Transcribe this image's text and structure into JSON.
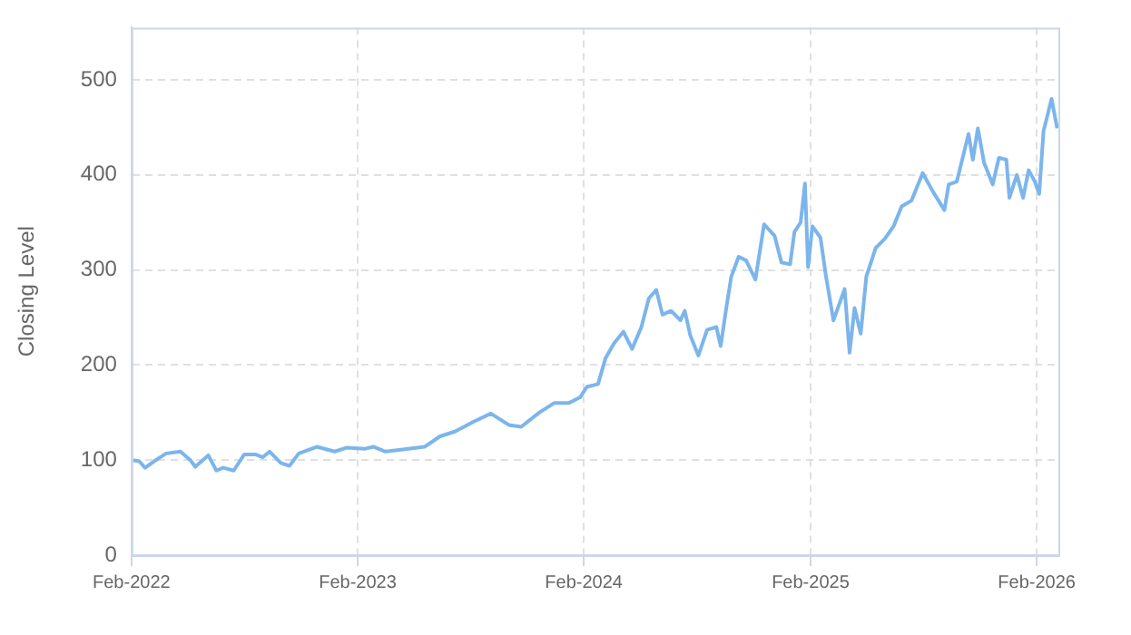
{
  "chart_data": {
    "type": "line",
    "ylabel": "Closing Level",
    "xlim": [
      "2022-02-01",
      "2026-03-08"
    ],
    "xticks": [
      {
        "value": "2022-02-01",
        "label": "Feb-2022"
      },
      {
        "value": "2023-02-01",
        "label": "Feb-2023"
      },
      {
        "value": "2024-02-01",
        "label": "Feb-2024"
      },
      {
        "value": "2025-02-01",
        "label": "Feb-2025"
      },
      {
        "value": "2026-02-01",
        "label": "Feb-2026"
      }
    ],
    "ylim": [
      0,
      555
    ],
    "yticks": [
      0,
      100,
      200,
      300,
      400,
      500
    ],
    "grid": true,
    "marker": "none",
    "line_style": "solid",
    "series": [
      {
        "color": "#7cb5ec",
        "x": [
          "2022-02-01",
          "2022-02-13",
          "2022-02-23",
          "2022-03-10",
          "2022-03-29",
          "2022-04-21",
          "2022-05-07",
          "2022-05-15",
          "2022-06-05",
          "2022-06-18",
          "2022-06-29",
          "2022-07-16",
          "2022-08-02",
          "2022-08-20",
          "2022-09-01",
          "2022-09-12",
          "2022-09-30",
          "2022-10-14",
          "2022-10-29",
          "2022-11-27",
          "2022-12-26",
          "2023-01-14",
          "2023-02-13",
          "2023-02-27",
          "2023-03-18",
          "2023-04-12",
          "2023-05-20",
          "2023-06-14",
          "2023-07-08",
          "2023-08-06",
          "2023-09-04",
          "2023-10-03",
          "2023-10-23",
          "2023-11-21",
          "2023-12-15",
          "2024-01-08",
          "2024-01-26",
          "2024-02-06",
          "2024-02-24",
          "2024-03-07",
          "2024-03-21",
          "2024-04-05",
          "2024-04-19",
          "2024-05-04",
          "2024-05-16",
          "2024-05-28",
          "2024-06-07",
          "2024-06-21",
          "2024-07-06",
          "2024-07-13",
          "2024-07-22",
          "2024-08-04",
          "2024-08-18",
          "2024-09-02",
          "2024-09-09",
          "2024-09-18",
          "2024-09-26",
          "2024-10-08",
          "2024-10-20",
          "2024-11-04",
          "2024-11-18",
          "2024-12-05",
          "2024-12-16",
          "2024-12-30",
          "2025-01-06",
          "2025-01-16",
          "2025-01-23",
          "2025-01-28",
          "2025-02-04",
          "2025-02-17",
          "2025-02-26",
          "2025-03-10",
          "2025-03-28",
          "2025-04-05",
          "2025-04-13",
          "2025-04-23",
          "2025-05-02",
          "2025-05-17",
          "2025-06-01",
          "2025-06-15",
          "2025-06-28",
          "2025-07-14",
          "2025-08-01",
          "2025-08-17",
          "2025-09-05",
          "2025-09-12",
          "2025-09-25",
          "2025-10-14",
          "2025-10-21",
          "2025-10-29",
          "2025-11-08",
          "2025-11-22",
          "2025-12-02",
          "2025-12-14",
          "2025-12-19",
          "2025-12-31",
          "2026-01-10",
          "2026-01-19",
          "2026-01-29",
          "2026-02-05",
          "2026-02-12",
          "2026-02-25",
          "2026-03-06"
        ],
        "values": [
          100,
          99,
          92,
          99,
          107,
          109,
          100,
          93,
          105,
          89,
          92,
          89,
          106,
          106,
          103,
          109,
          97,
          94,
          107,
          114,
          109,
          113,
          112,
          114,
          109,
          111,
          114,
          125,
          130,
          140,
          149,
          137,
          135,
          150,
          160,
          160,
          166,
          177,
          180,
          207,
          223,
          235,
          217,
          240,
          270,
          279,
          253,
          257,
          247,
          257,
          231,
          210,
          237,
          240,
          220,
          260,
          293,
          314,
          310,
          290,
          348,
          336,
          308,
          306,
          340,
          350,
          391,
          303,
          346,
          334,
          293,
          247,
          280,
          213,
          260,
          233,
          293,
          323,
          333,
          346,
          367,
          373,
          402,
          383,
          363,
          390,
          393,
          443,
          416,
          449,
          413,
          390,
          418,
          416,
          376,
          400,
          376,
          405,
          393,
          380,
          446,
          480,
          449
        ]
      }
    ]
  }
}
